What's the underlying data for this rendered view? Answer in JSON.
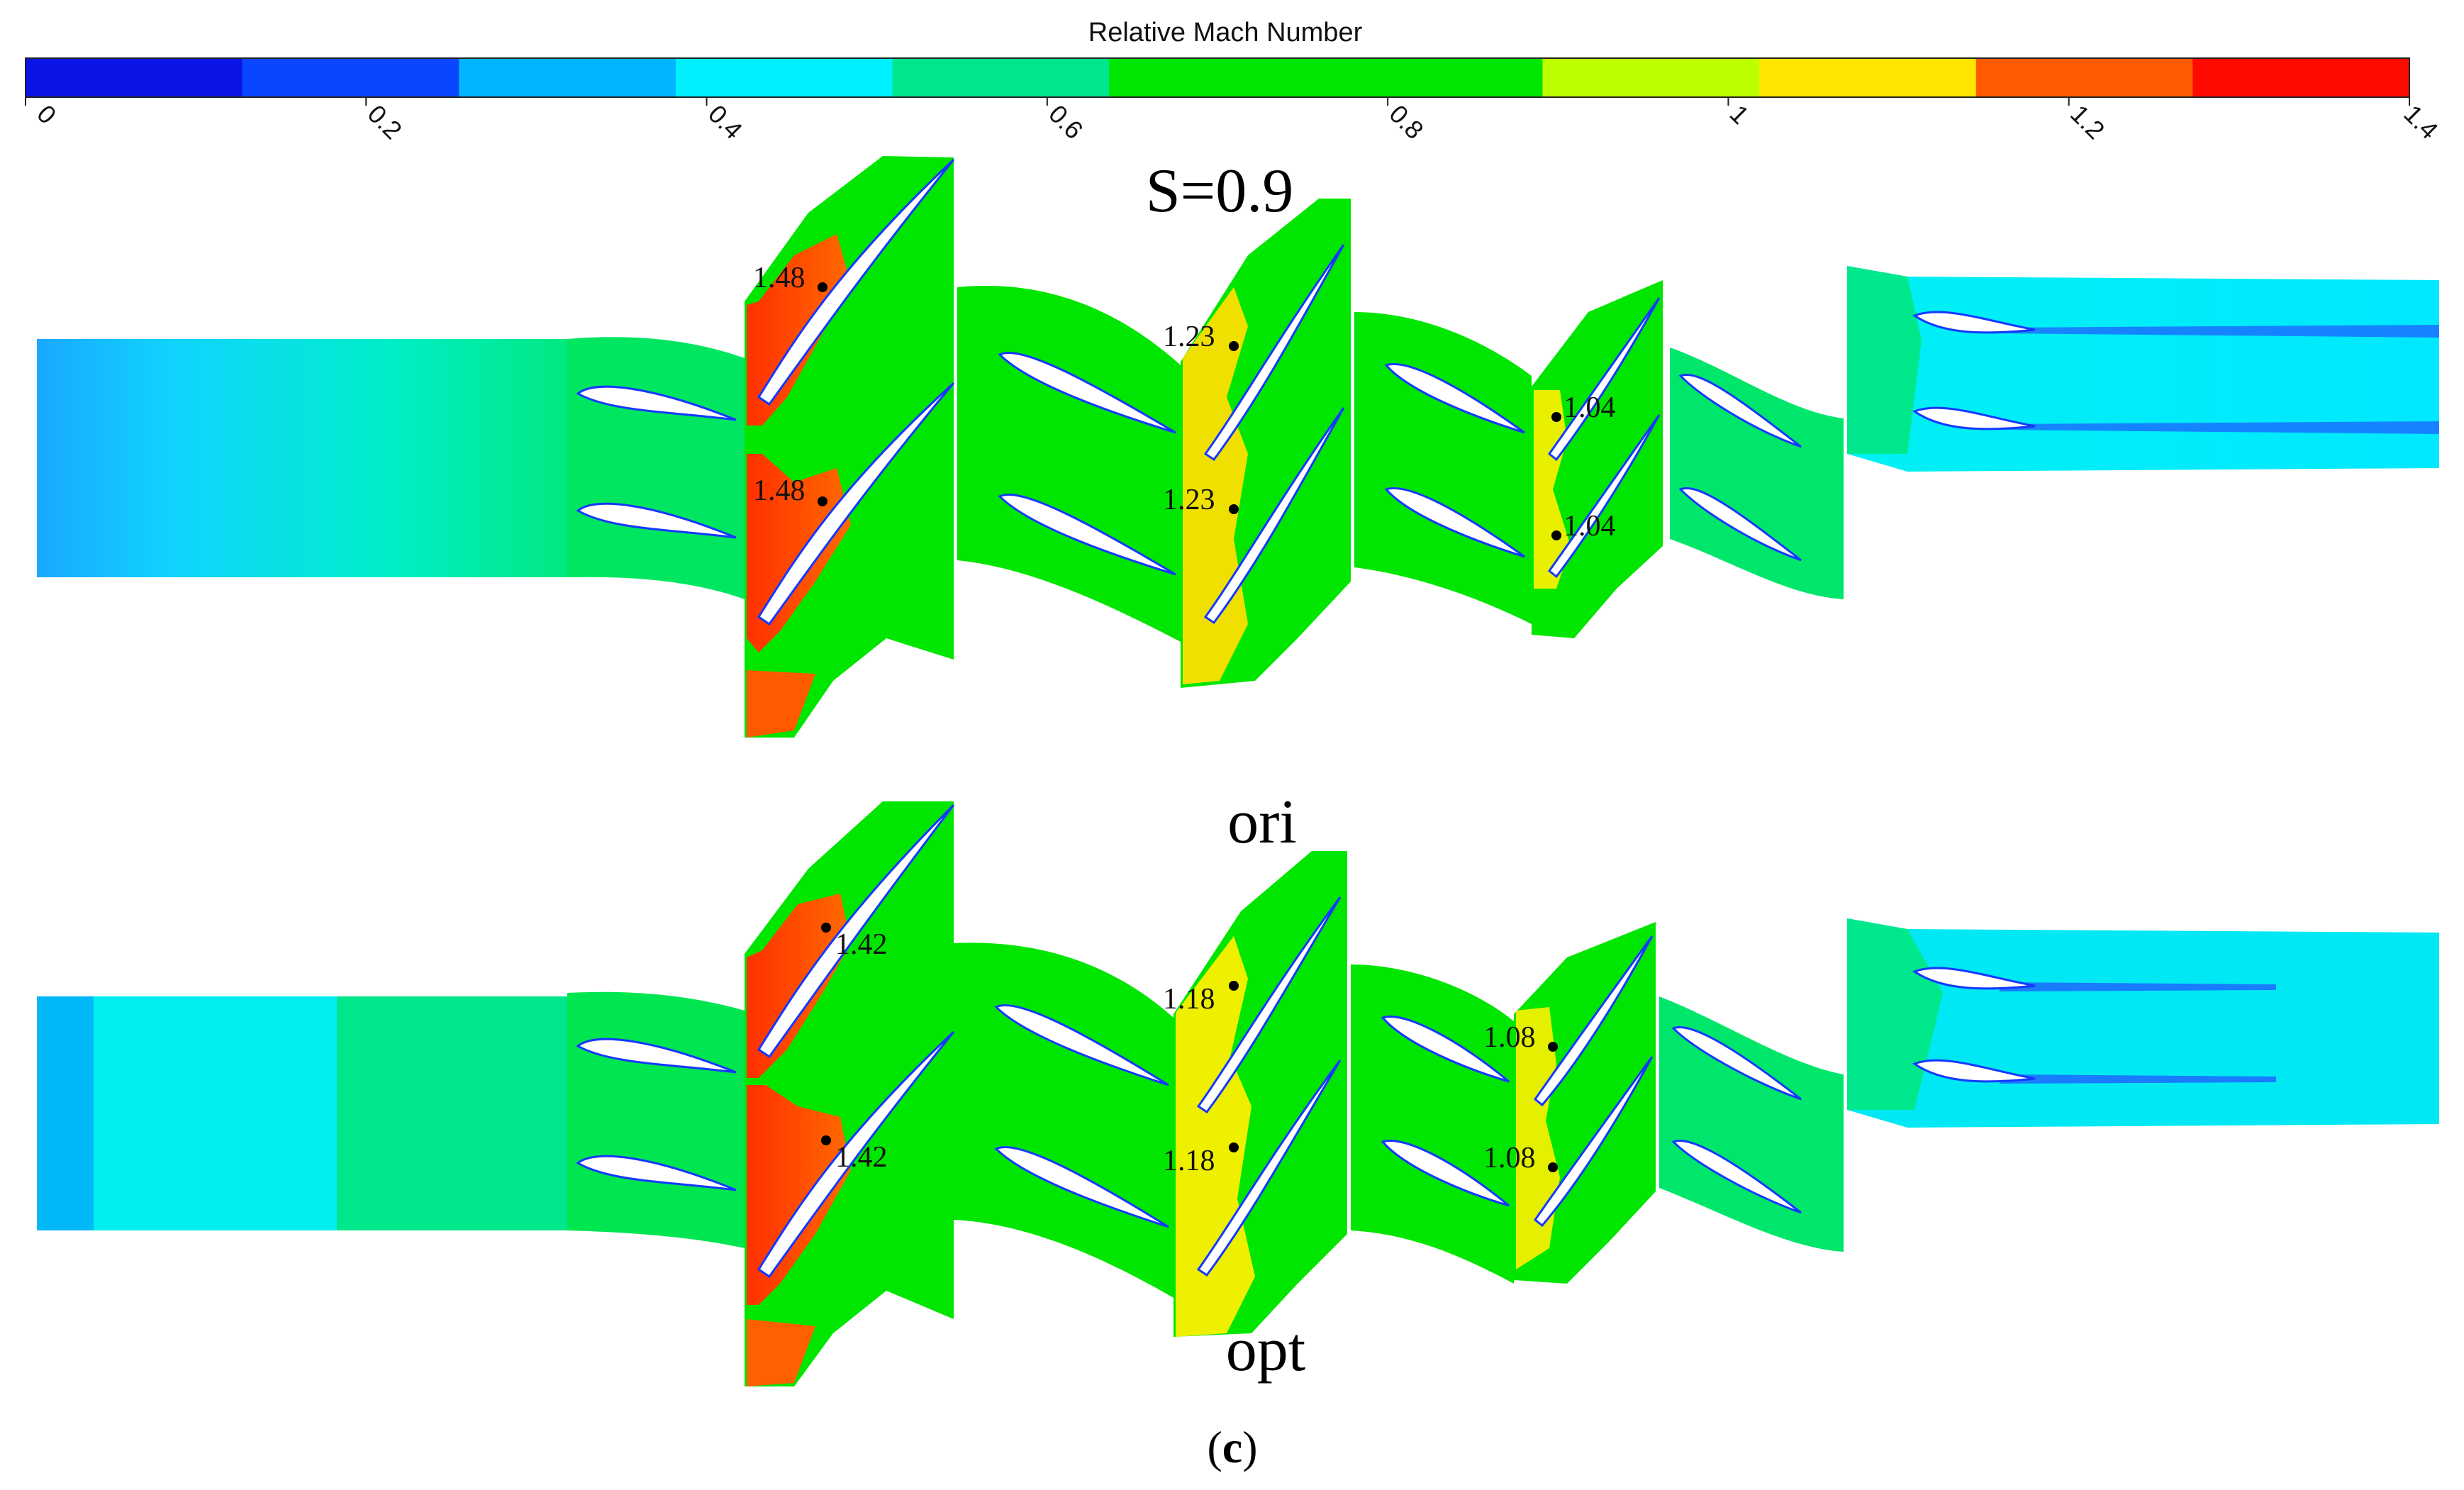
{
  "colorbar": {
    "title": "Relative Mach Number",
    "ticks": [
      "0",
      "0.2",
      "0.4",
      "0.6",
      "0.8",
      "1",
      "1.2",
      "1.4"
    ],
    "range": [
      0,
      1.4
    ],
    "colors": [
      "#0a14e6",
      "#0a46ff",
      "#00b4ff",
      "#00f0ff",
      "#00e68c",
      "#00e600",
      "#00e600",
      "#beff00",
      "#ffe600",
      "#ff5a00",
      "#ff0a00"
    ]
  },
  "condition_label": "S=0.9",
  "panels": [
    {
      "id": "ori",
      "label": "ori",
      "rotor1": [
        "1.48",
        "1.48"
      ],
      "rotor2": [
        "1.23",
        "1.23"
      ],
      "rotor3": [
        "1.04",
        "1.04"
      ]
    },
    {
      "id": "opt",
      "label": "opt",
      "rotor1": [
        "1.42",
        "1.42"
      ],
      "rotor2": [
        "1.18",
        "1.18"
      ],
      "rotor3": [
        "1.08",
        "1.08"
      ]
    }
  ],
  "caption": {
    "open": "(",
    "letter": "c",
    "close": ")"
  }
}
